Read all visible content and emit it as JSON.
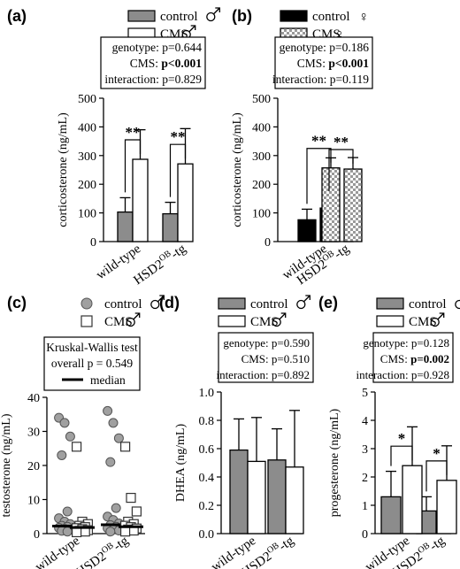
{
  "chart_data": [
    {
      "panel": "(a)",
      "type": "bar",
      "ylabel": "corticosterone (ng/mL)",
      "ylim": [
        0,
        500
      ],
      "yticks": [
        0,
        100,
        200,
        300,
        400,
        500
      ],
      "categories": [
        "wild-type",
        "HSD2OB-tg"
      ],
      "category_sup": [
        "",
        "OB"
      ],
      "category_base": [
        "wild-type",
        "HSD2"
      ],
      "category_tail": [
        "",
        "-tg"
      ],
      "legend": [
        "control",
        "CMS"
      ],
      "sex_symbol": "♂",
      "series": [
        {
          "name": "control",
          "values": [
            103,
            97
          ],
          "errors": [
            50,
            40
          ],
          "color": "#8c8c8c",
          "pattern": "solid"
        },
        {
          "name": "CMS",
          "values": [
            287,
            271
          ],
          "errors": [
            103,
            123
          ],
          "color": "#ffffff",
          "pattern": "solid"
        }
      ],
      "stats": [
        {
          "label": "genotype:",
          "value": "p=0.644",
          "bold": false
        },
        {
          "label": "CMS:",
          "value": "p<0.001",
          "bold": true
        },
        {
          "label": "interaction:",
          "value": "p=0.829",
          "bold": false
        }
      ],
      "significance": [
        "**",
        "**"
      ]
    },
    {
      "panel": "(b)",
      "type": "bar",
      "ylabel": "corticosterone (ng/mL)",
      "ylim": [
        0,
        500
      ],
      "yticks": [
        0,
        100,
        200,
        300,
        400,
        500
      ],
      "categories": [
        "wild-type",
        "HSD2OB-tg"
      ],
      "category_sup": [
        "",
        "OB"
      ],
      "category_base": [
        "wild-type",
        "HSD2"
      ],
      "category_tail": [
        "",
        "-tg"
      ],
      "legend": [
        "control",
        "CMS"
      ],
      "sex_symbol": "♀",
      "series": [
        {
          "name": "control",
          "values": [
            76,
            117
          ],
          "errors": [
            37,
            40
          ],
          "color": "#000000",
          "pattern": "solid"
        },
        {
          "name": "CMS",
          "values": [
            257,
            253
          ],
          "errors": [
            35,
            40
          ],
          "color": "#bbbbbb",
          "pattern": "checker"
        }
      ],
      "stats": [
        {
          "label": "genotype:",
          "value": "p=0.186",
          "bold": false
        },
        {
          "label": "CMS:",
          "value": "p<0.001",
          "bold": true
        },
        {
          "label": "interaction:",
          "value": "p=0.119",
          "bold": false
        }
      ],
      "significance": [
        "**",
        "**"
      ]
    },
    {
      "panel": "(c)",
      "type": "scatter",
      "ylabel": "testosterone (ng/mL)",
      "ylim": [
        0,
        40
      ],
      "yticks": [
        0,
        10,
        20,
        30,
        40
      ],
      "categories": [
        "wild-type",
        "HSD2OB-tg"
      ],
      "category_sup": [
        "",
        "OB"
      ],
      "category_base": [
        "wild-type",
        "HSD2"
      ],
      "category_tail": [
        "",
        "-tg"
      ],
      "legend": [
        "control",
        "CMS"
      ],
      "sex_symbol": "♂",
      "series": [
        {
          "name": "control",
          "marker": "circle",
          "groups": [
            [
              34,
              32.5,
              28.5,
              23,
              6.5,
              4.5,
              3.5,
              2.8,
              2.3,
              2.0,
              1.7,
              1.4,
              1.1,
              0.8,
              0.6
            ],
            [
              36,
              32.5,
              28,
              21,
              7.5,
              5,
              4,
              3,
              2.5,
              2.0,
              1.6,
              1.2,
              0.9,
              0.6
            ]
          ],
          "medians": [
            2.2,
            2.6
          ]
        },
        {
          "name": "CMS",
          "marker": "square",
          "groups": [
            [
              25.5,
              3.5,
              2.8,
              2.3,
              1.9,
              1.6,
              1.3,
              1.0,
              0.8,
              0.6,
              0.4
            ],
            [
              25.5,
              10.5,
              6.5,
              3.5,
              2.8,
              2.3,
              1.9,
              1.5,
              1.2,
              0.9,
              0.6
            ]
          ],
          "medians": [
            1.8,
            2.0
          ]
        }
      ],
      "stats_title": "Kruskal-Wallis test",
      "stats_overall": "overall p = 0.549",
      "median_label": "median"
    },
    {
      "panel": "(d)",
      "type": "bar",
      "ylabel": "DHEA (ng/mL)",
      "ylim": [
        0,
        1.0
      ],
      "yticks": [
        0.0,
        0.2,
        0.4,
        0.6,
        0.8,
        1.0
      ],
      "categories": [
        "wild-type",
        "HSD2OB-tg"
      ],
      "category_sup": [
        "",
        "OB"
      ],
      "category_base": [
        "wild-type",
        "HSD2"
      ],
      "category_tail": [
        "",
        "-tg"
      ],
      "legend": [
        "control",
        "CMS"
      ],
      "sex_symbol": "♂",
      "series": [
        {
          "name": "control",
          "values": [
            0.59,
            0.52
          ],
          "errors": [
            0.22,
            0.22
          ],
          "color": "#8c8c8c",
          "pattern": "solid"
        },
        {
          "name": "CMS",
          "values": [
            0.51,
            0.47
          ],
          "errors": [
            0.31,
            0.4
          ],
          "color": "#ffffff",
          "pattern": "solid"
        }
      ],
      "stats": [
        {
          "label": "genotype:",
          "value": "p=0.590",
          "bold": false
        },
        {
          "label": "CMS:",
          "value": "p=0.510",
          "bold": false
        },
        {
          "label": "interaction:",
          "value": "p=0.892",
          "bold": false
        }
      ],
      "significance": [
        "",
        ""
      ]
    },
    {
      "panel": "(e)",
      "type": "bar",
      "ylabel": "progesterone (ng/mL)",
      "ylim": [
        0,
        5
      ],
      "yticks": [
        0,
        1,
        2,
        3,
        4,
        5
      ],
      "categories": [
        "wild-type",
        "HSD2OB-tg"
      ],
      "category_sup": [
        "",
        "OB"
      ],
      "category_base": [
        "wild-type",
        "HSD2"
      ],
      "category_tail": [
        "",
        "-tg"
      ],
      "legend": [
        "control",
        "CMS"
      ],
      "sex_symbol": "♂",
      "series": [
        {
          "name": "control",
          "values": [
            1.3,
            0.8
          ],
          "errors": [
            0.9,
            0.5
          ],
          "color": "#8c8c8c",
          "pattern": "solid"
        },
        {
          "name": "CMS",
          "values": [
            2.4,
            1.88
          ],
          "errors": [
            1.37,
            1.22
          ],
          "color": "#ffffff",
          "pattern": "solid"
        }
      ],
      "stats": [
        {
          "label": "genotype:",
          "value": "p=0.128",
          "bold": false
        },
        {
          "label": "CMS:",
          "value": "p=0.002",
          "bold": true
        },
        {
          "label": "interaction:",
          "value": "p=0.928",
          "bold": false
        }
      ],
      "significance": [
        "*",
        "*"
      ]
    }
  ]
}
